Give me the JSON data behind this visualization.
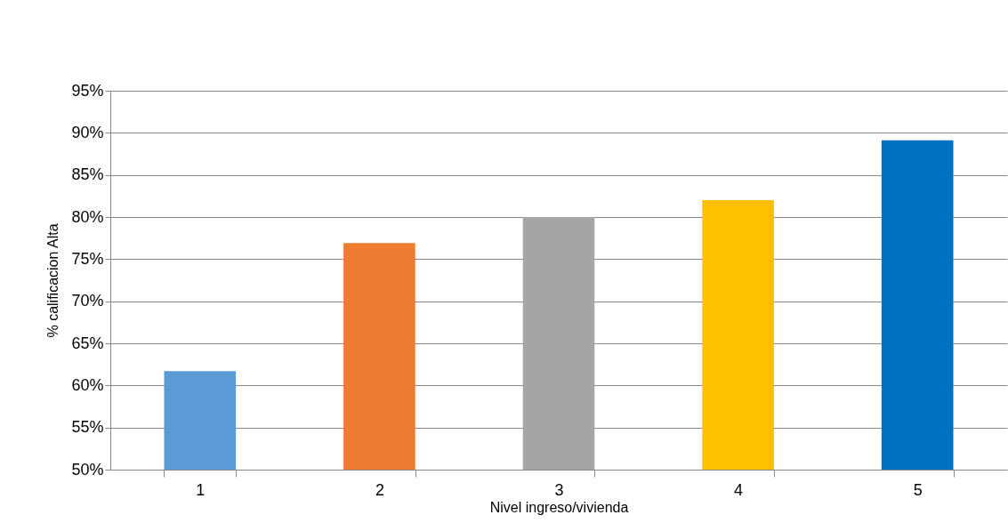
{
  "chart_data": {
    "type": "bar",
    "xlabel": "Nivel ingreso/vivienda",
    "ylabel": "% calificacion Alta",
    "categories": [
      "1",
      "2",
      "3",
      "4",
      "5"
    ],
    "values": [
      61.7,
      76.9,
      80.0,
      82.0,
      89.1
    ],
    "colors": [
      "#5b9bd5",
      "#ed7d31",
      "#a5a5a5",
      "#ffc000",
      "#0070c0"
    ],
    "ylim": [
      50,
      95
    ],
    "yticks": [
      {
        "value": 50,
        "label": "50%"
      },
      {
        "value": 55,
        "label": "55%"
      },
      {
        "value": 60,
        "label": "60%"
      },
      {
        "value": 65,
        "label": "65%"
      },
      {
        "value": 70,
        "label": "70%"
      },
      {
        "value": 75,
        "label": "75%"
      },
      {
        "value": 80,
        "label": "80%"
      },
      {
        "value": 85,
        "label": "85%"
      },
      {
        "value": 90,
        "label": "90%"
      },
      {
        "value": 95,
        "label": "95%"
      }
    ],
    "grid": "y"
  }
}
